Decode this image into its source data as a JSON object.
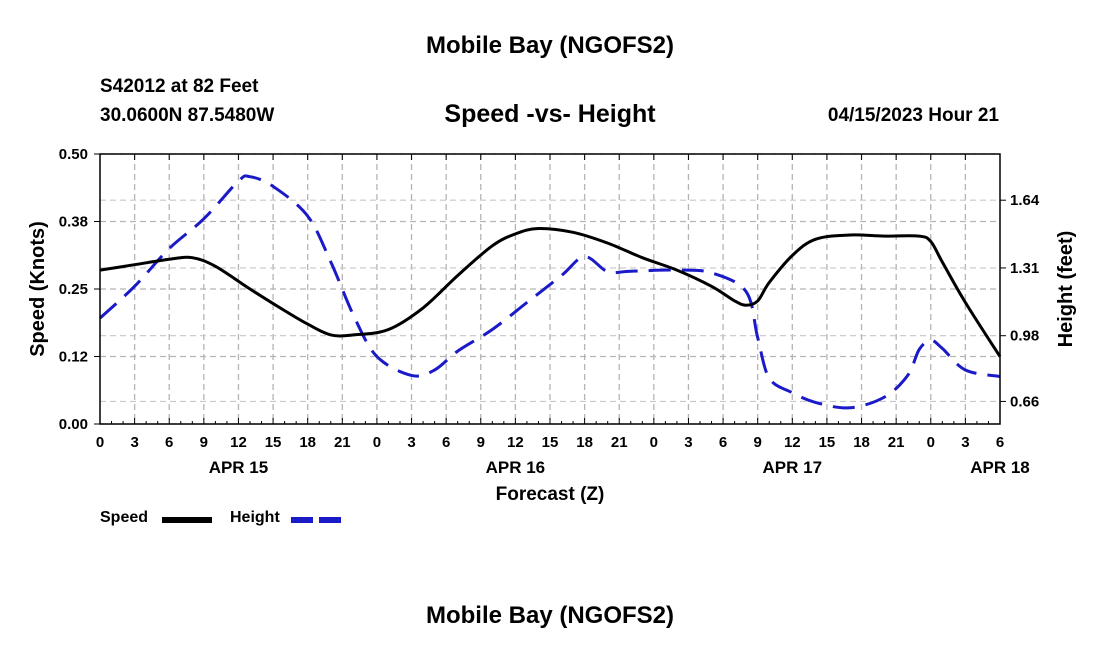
{
  "header": {
    "title": "Mobile Bay (NGOFS2)",
    "station_line": "S42012 at 82 Feet",
    "coords_line": "30.0600N  87.5480W",
    "subtitle": "Speed -vs- Height",
    "issued": "04/15/2023 Hour 21"
  },
  "footer": {
    "title": "Mobile Bay (NGOFS2)"
  },
  "legend": {
    "items": [
      {
        "label": "Speed",
        "color": "#000000",
        "style": "solid"
      },
      {
        "label": "Height",
        "color": "#1a1ac8",
        "style": "dashed"
      }
    ]
  },
  "chart_data": {
    "type": "line",
    "xlabel": "Forecast (Z)",
    "ylabel_left": "Speed (Knots)",
    "ylabel_right": "Height (feet)",
    "x_range_hours": [
      0,
      78
    ],
    "x_tick_labels": [
      "0",
      "3",
      "6",
      "9",
      "12",
      "15",
      "18",
      "21",
      "0",
      "3",
      "6",
      "9",
      "12",
      "15",
      "18",
      "21",
      "0",
      "3",
      "6",
      "9",
      "12",
      "15",
      "18",
      "21",
      "0",
      "3",
      "6"
    ],
    "date_labels": [
      {
        "label": "APR 15",
        "hour": 12
      },
      {
        "label": "APR 16",
        "hour": 36
      },
      {
        "label": "APR 17",
        "hour": 60
      },
      {
        "label": "APR 18",
        "hour": 78
      }
    ],
    "ylim_left": [
      0,
      0.5
    ],
    "y_ticks_left": [
      "0.00",
      "0.12",
      "0.25",
      "0.38",
      "0.50"
    ],
    "y_ticks_left_values": [
      0,
      0.125,
      0.25,
      0.375,
      0.5
    ],
    "ylim_right": [
      0.55,
      1.865
    ],
    "y_ticks_right": [
      "0.66",
      "0.98",
      "1.31",
      "1.64"
    ],
    "y_ticks_right_values": [
      0.66,
      0.98,
      1.31,
      1.64
    ],
    "grid": true,
    "series": [
      {
        "name": "Speed",
        "axis": "left",
        "color": "#000000",
        "dash": false,
        "x": [
          0,
          3,
          6,
          8,
          10,
          13,
          16,
          18,
          20,
          22,
          25,
          28,
          31,
          34,
          36,
          38,
          41,
          44,
          47,
          50,
          53,
          55,
          56,
          57,
          58,
          60,
          62,
          65,
          68,
          71,
          72,
          73,
          75,
          78
        ],
        "values": [
          0.285,
          0.295,
          0.305,
          0.308,
          0.292,
          0.25,
          0.21,
          0.185,
          0.165,
          0.165,
          0.175,
          0.215,
          0.275,
          0.33,
          0.352,
          0.362,
          0.355,
          0.335,
          0.308,
          0.285,
          0.255,
          0.228,
          0.22,
          0.228,
          0.262,
          0.312,
          0.342,
          0.35,
          0.348,
          0.348,
          0.338,
          0.3,
          0.225,
          0.125
        ]
      },
      {
        "name": "Height",
        "axis": "left",
        "color": "#1a1ac8",
        "dash": true,
        "x": [
          0,
          3,
          6,
          9,
          12,
          13,
          15,
          18,
          20,
          22,
          24,
          27,
          29,
          31,
          34,
          37,
          40,
          42,
          44,
          46,
          50,
          53,
          56,
          57,
          58,
          60,
          62,
          65,
          68,
          70,
          71,
          72,
          73,
          75,
          78
        ],
        "values": [
          0.196,
          0.255,
          0.325,
          0.38,
          0.45,
          0.458,
          0.44,
          0.385,
          0.3,
          0.2,
          0.125,
          0.09,
          0.1,
          0.135,
          0.175,
          0.225,
          0.275,
          0.31,
          0.282,
          0.283,
          0.285,
          0.28,
          0.245,
          0.16,
          0.085,
          0.058,
          0.04,
          0.03,
          0.05,
          0.09,
          0.138,
          0.155,
          0.14,
          0.1,
          0.088
        ]
      }
    ]
  }
}
